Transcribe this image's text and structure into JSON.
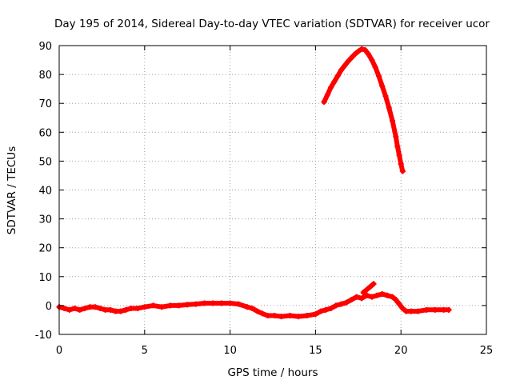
{
  "chart_data": {
    "type": "scatter",
    "title": "Day 195 of 2014, Sidereal Day-to-day VTEC variation (SDTVAR) for receiver ucor",
    "xlabel": "GPS time / hours",
    "ylabel": "SDTVAR / TECUs",
    "xlim": [
      0,
      25
    ],
    "ylim": [
      -10,
      90
    ],
    "xticks": [
      0,
      5,
      10,
      15,
      20,
      25
    ],
    "yticks": [
      -10,
      0,
      10,
      20,
      30,
      40,
      50,
      60,
      70,
      80,
      90
    ],
    "grid": true,
    "marker_color": "#ff0000",
    "series": [
      {
        "name": "lower-track",
        "x": [
          0.0,
          0.3,
          0.6,
          0.9,
          1.2,
          1.5,
          1.8,
          2.1,
          2.4,
          2.7,
          3.0,
          3.3,
          3.6,
          3.9,
          4.2,
          4.6,
          5.0,
          5.5,
          6.0,
          6.5,
          7.0,
          7.5,
          8.0,
          8.5,
          9.0,
          9.5,
          10.0,
          10.5,
          11.0,
          11.3,
          11.6,
          11.9,
          12.2,
          12.6,
          13.0,
          13.5,
          14.0,
          14.5,
          15.0,
          15.3,
          15.6,
          15.9,
          16.2,
          16.5,
          16.8,
          17.1,
          17.4,
          17.7,
          18.0,
          18.3,
          18.6,
          18.9,
          19.2,
          19.5,
          19.7,
          19.9,
          20.1,
          20.3,
          20.6,
          21.0,
          21.5,
          22.0,
          22.5,
          22.8
        ],
        "y": [
          -0.5,
          -1.0,
          -1.5,
          -1.0,
          -1.5,
          -1.0,
          -0.5,
          -0.5,
          -1.0,
          -1.5,
          -1.5,
          -2.0,
          -2.0,
          -1.5,
          -1.0,
          -1.0,
          -0.5,
          0.0,
          -0.5,
          0.0,
          0.0,
          0.3,
          0.5,
          0.8,
          0.8,
          0.8,
          0.8,
          0.5,
          -0.5,
          -1.0,
          -2.0,
          -2.8,
          -3.5,
          -3.5,
          -3.8,
          -3.5,
          -3.8,
          -3.5,
          -3.0,
          -2.0,
          -1.5,
          -1.0,
          0.0,
          0.5,
          1.0,
          2.0,
          3.0,
          2.5,
          3.5,
          3.0,
          3.5,
          4.0,
          3.5,
          3.0,
          2.0,
          0.5,
          -1.0,
          -2.0,
          -2.0,
          -2.0,
          -1.5,
          -1.5,
          -1.5,
          -1.5
        ]
      },
      {
        "name": "lower-track-branch",
        "x": [
          17.8,
          18.0,
          18.2,
          18.4
        ],
        "y": [
          4.5,
          5.5,
          6.5,
          7.5
        ]
      },
      {
        "name": "upper-arc",
        "x": [
          15.5,
          15.7,
          15.9,
          16.1,
          16.3,
          16.5,
          16.7,
          16.9,
          17.1,
          17.3,
          17.5,
          17.7,
          17.9,
          18.1,
          18.3,
          18.5,
          18.7,
          18.9,
          19.1,
          19.3,
          19.5,
          19.7,
          19.8,
          19.9,
          20.0,
          20.1
        ],
        "y": [
          70.5,
          73.0,
          75.5,
          77.5,
          79.5,
          81.5,
          83.0,
          84.5,
          85.8,
          87.0,
          88.0,
          88.8,
          88.5,
          87.0,
          85.0,
          82.5,
          79.5,
          76.0,
          72.5,
          68.5,
          64.0,
          58.5,
          55.0,
          52.0,
          49.0,
          46.5
        ]
      }
    ]
  }
}
